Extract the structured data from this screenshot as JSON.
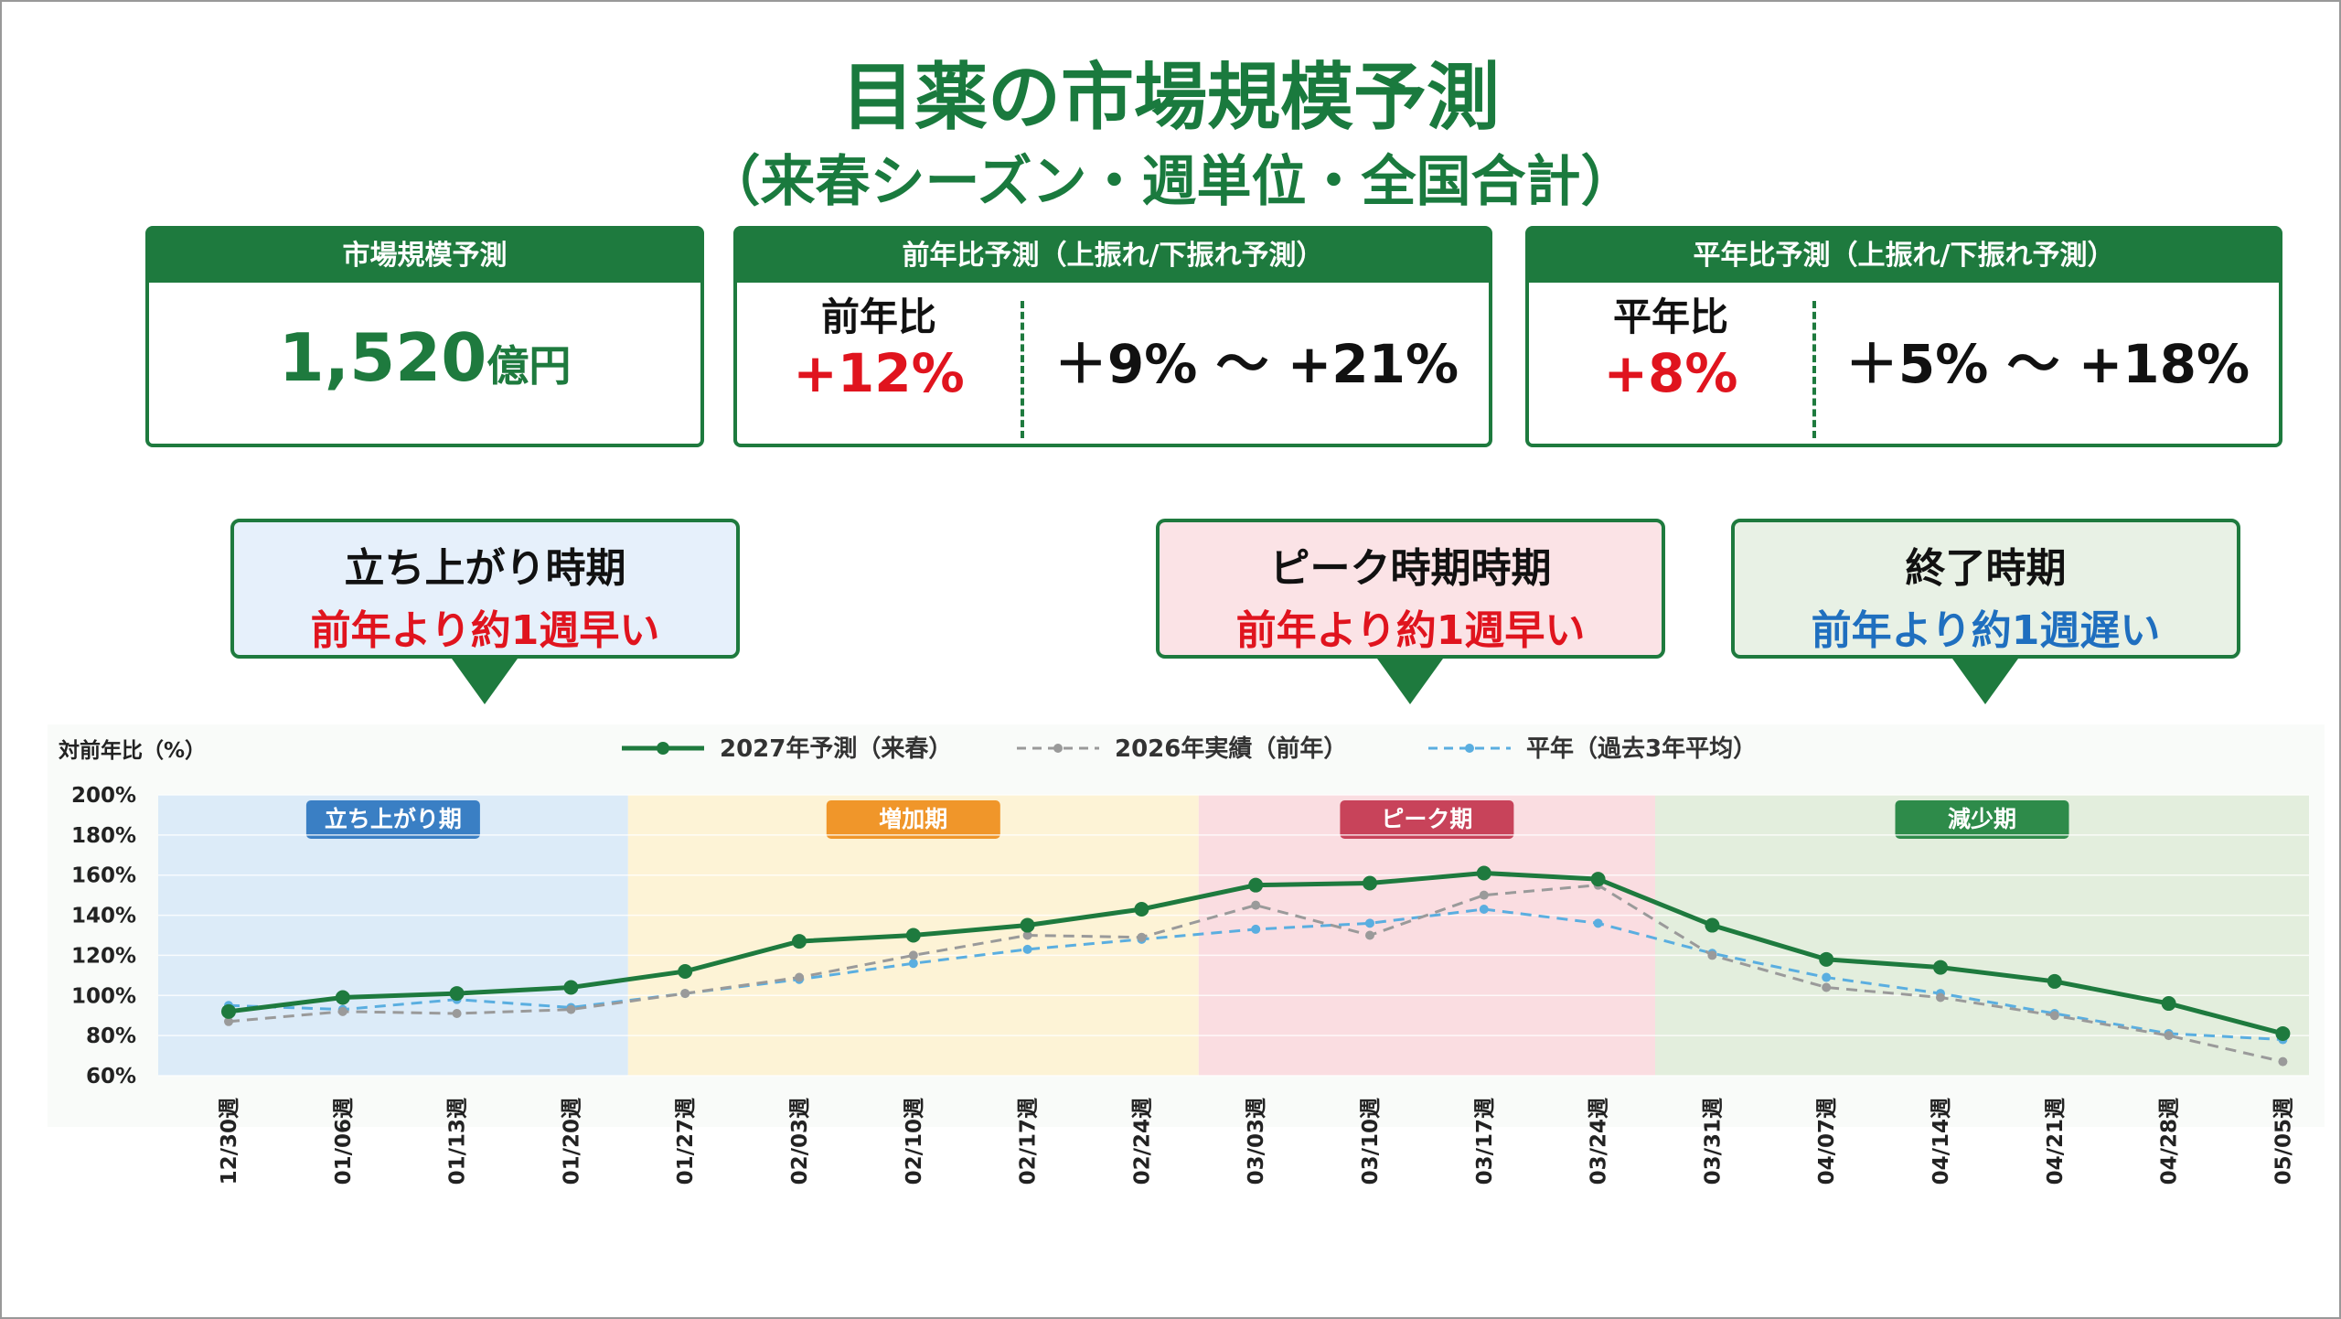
{
  "header": {
    "title": "目薬の市場規模予測",
    "subtitle": "（来春シーズン・週単位・全国合計）"
  },
  "cards": [
    {
      "title": "市場規模予測",
      "value": "1,520",
      "unit": "億円"
    },
    {
      "title": "前年比予測（上振れ/下振れ予測）",
      "label": "前年比",
      "value": "+12%",
      "range": "＋9% ～ +21%"
    },
    {
      "title": "平年比予測（上振れ/下振れ予測）",
      "label": "平年比",
      "value": "+8%",
      "range": "＋5% ～ +18%"
    }
  ],
  "callouts": [
    {
      "title": "立ち上がり時期",
      "note": "前年より約1週早い",
      "note_color": "#e0141e",
      "background": "#e6f0fb"
    },
    {
      "title": "ピーク時期時期",
      "note": "前年より約1週早い",
      "note_color": "#e0141e",
      "background": "#fbe3e6"
    },
    {
      "title": "終了時期",
      "note": "前年より約1週遅い",
      "note_color": "#1f6fbf",
      "background": "#e8f1e5"
    }
  ],
  "chart_data": {
    "type": "line",
    "y_label": "対前年比（%）",
    "categories": [
      "12/30週",
      "01/06週",
      "01/13週",
      "01/20週",
      "01/27週",
      "02/03週",
      "02/10週",
      "02/17週",
      "02/24週",
      "03/03週",
      "03/10週",
      "03/17週",
      "03/24週",
      "03/31週",
      "04/07週",
      "04/14週",
      "04/21週",
      "04/28週",
      "05/05週"
    ],
    "series": [
      {
        "name": "2027年予測（来春）",
        "color": "#1e7a3e",
        "style": "solid",
        "values": [
          92,
          99,
          101,
          104,
          112,
          127,
          130,
          135,
          143,
          155,
          156,
          161,
          158,
          135,
          118,
          114,
          107,
          96,
          81
        ]
      },
      {
        "name": "2026年実績（前年）",
        "color": "#9a9a9a",
        "style": "dashed",
        "values": [
          87,
          92,
          91,
          93,
          101,
          109,
          120,
          130,
          129,
          145,
          130,
          150,
          155,
          120,
          104,
          99,
          90,
          80,
          67
        ]
      },
      {
        "name": "平年（過去3年平均）",
        "color": "#5aaee0",
        "style": "dashed",
        "values": [
          95,
          93,
          98,
          94,
          101,
          108,
          116,
          123,
          128,
          133,
          136,
          143,
          136,
          121,
          109,
          101,
          91,
          81,
          78
        ]
      }
    ],
    "ylim": [
      60,
      200
    ],
    "yticks": [
      {
        "value": 60,
        "label": "60%"
      },
      {
        "value": 80,
        "label": "80%"
      },
      {
        "value": 100,
        "label": "100%"
      },
      {
        "value": 120,
        "label": "120%"
      },
      {
        "value": 140,
        "label": "140%"
      },
      {
        "value": 160,
        "label": "160%"
      },
      {
        "value": 180,
        "label": "180%"
      },
      {
        "value": 200,
        "label": "200%"
      }
    ],
    "grid": true,
    "legend": "top",
    "phases": [
      {
        "name": "立ち上がり期",
        "count": 4,
        "color": "#dcebf8",
        "label_color": "#3a7fc4"
      },
      {
        "name": "増加期",
        "count": 5,
        "color": "#fdf3d6",
        "label_color": "#f0962a"
      },
      {
        "name": "ピーク期",
        "count": 4,
        "color": "#fadde1",
        "label_color": "#c8435a"
      },
      {
        "name": "減少期",
        "count": 6,
        "color": "#e3eedd",
        "label_color": "#2e8b4a"
      }
    ]
  }
}
